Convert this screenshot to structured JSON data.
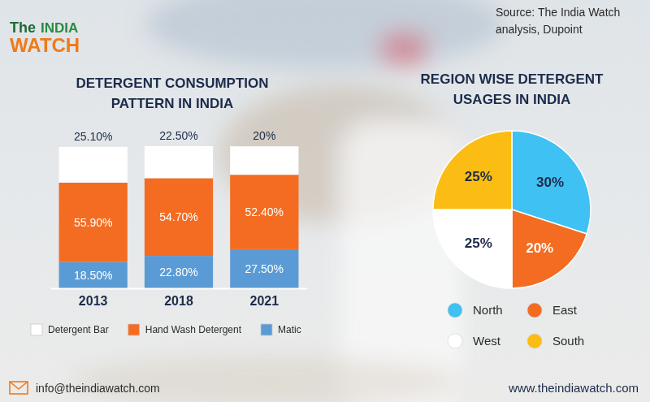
{
  "header": {
    "logo": [
      "The",
      "INDIA",
      "WATCH"
    ],
    "source": "Source: The India Watch analysis, Dupoint"
  },
  "chart_data": [
    {
      "type": "bar",
      "title": "DETERGENT CONSUMPTION PATTERN IN INDIA",
      "categories": [
        "2013",
        "2018",
        "2021"
      ],
      "stacked": true,
      "data_labels": true,
      "tick_labels": "x",
      "legend": "bottom",
      "ylim": [
        0,
        100
      ],
      "series": [
        {
          "name": "Matic",
          "color": "#5b9bd5",
          "values": [
            18.5,
            22.8,
            27.5
          ],
          "value_labels": [
            "18.50%",
            "22.80%",
            "27.50%"
          ]
        },
        {
          "name": "Hand Wash Detergent",
          "color": "#f36c21",
          "values": [
            55.9,
            54.7,
            52.4
          ],
          "value_labels": [
            "55.90%",
            "54.70%",
            "52.40%"
          ]
        },
        {
          "name": "Detergent Bar",
          "color": "#ffffff",
          "values": [
            25.1,
            22.5,
            20
          ],
          "value_labels": [
            "25.10%",
            "22.50%",
            "20%"
          ]
        }
      ]
    },
    {
      "type": "pie",
      "title": "REGION WISE DETERGENT USAGES IN INDIA",
      "categories": [
        "North",
        "East",
        "West",
        "South"
      ],
      "values": [
        30,
        20,
        25,
        25
      ],
      "value_labels": [
        "30%",
        "20%",
        "25%",
        "25%"
      ],
      "colors": [
        "#3fc1f3",
        "#f36c21",
        "#ffffff",
        "#fbbd13"
      ],
      "data_labels": true,
      "legend": "bottom"
    }
  ],
  "footer": {
    "email": "info@theindiawatch.com",
    "website": "www.theindiawatch.com"
  }
}
